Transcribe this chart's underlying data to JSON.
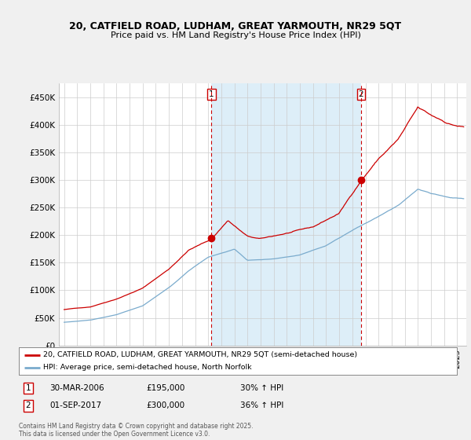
{
  "title_line1": "20, CATFIELD ROAD, LUDHAM, GREAT YARMOUTH, NR29 5QT",
  "title_line2": "Price paid vs. HM Land Registry's House Price Index (HPI)",
  "legend_line1": "20, CATFIELD ROAD, LUDHAM, GREAT YARMOUTH, NR29 5QT (semi-detached house)",
  "legend_line2": "HPI: Average price, semi-detached house, North Norfolk",
  "transaction1_date": "30-MAR-2006",
  "transaction1_price": "£195,000",
  "transaction1_hpi": "30% ↑ HPI",
  "transaction2_date": "01-SEP-2017",
  "transaction2_price": "£300,000",
  "transaction2_hpi": "36% ↑ HPI",
  "footer": "Contains HM Land Registry data © Crown copyright and database right 2025.\nThis data is licensed under the Open Government Licence v3.0.",
  "red_color": "#cc0000",
  "blue_color": "#7aabcd",
  "shade_color": "#ddeef8",
  "vline_color": "#cc0000",
  "bg_color": "#f0f0f0",
  "plot_bg": "#ffffff",
  "grid_color": "#cccccc",
  "ylim": [
    0,
    475000
  ],
  "yticks": [
    0,
    50000,
    100000,
    150000,
    200000,
    250000,
    300000,
    350000,
    400000,
    450000
  ],
  "year_start": 1995,
  "year_end": 2025,
  "transaction1_year": 2006.25,
  "transaction2_year": 2017.67,
  "transaction1_val": 195000,
  "transaction2_val": 300000
}
